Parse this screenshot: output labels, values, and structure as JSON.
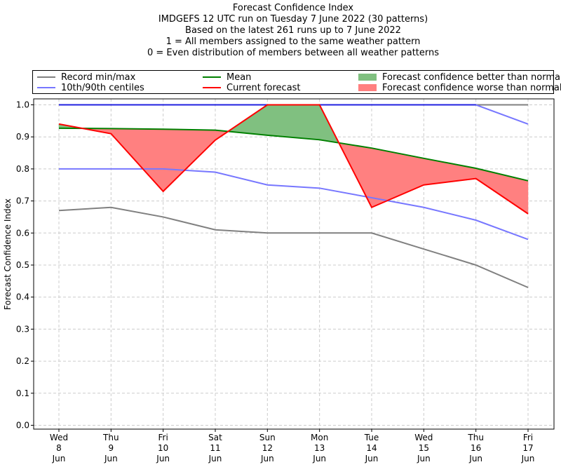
{
  "chart_data": {
    "type": "line",
    "title_lines": [
      "Forecast Confidence Index",
      "IMDGEFS 12 UTC run on Tuesday 7 June 2022 (30 patterns)",
      "Based on the latest 261 runs up to 7 June 2022",
      "1 = All members assigned to the same weather pattern",
      "0 = Even distribution of members between all weather patterns"
    ],
    "ylabel": "Forecast Confidence Index",
    "ylim": [
      0,
      1.0
    ],
    "yticks": [
      "0.0",
      "0.1",
      "0.2",
      "0.3",
      "0.4",
      "0.5",
      "0.6",
      "0.7",
      "0.8",
      "0.9",
      "1.0"
    ],
    "grid": true,
    "categories": [
      [
        "Wed",
        "8",
        "Jun"
      ],
      [
        "Thu",
        "9",
        "Jun"
      ],
      [
        "Fri",
        "10",
        "Jun"
      ],
      [
        "Sat",
        "11",
        "Jun"
      ],
      [
        "Sun",
        "12",
        "Jun"
      ],
      [
        "Mon",
        "13",
        "Jun"
      ],
      [
        "Tue",
        "14",
        "Jun"
      ],
      [
        "Wed",
        "15",
        "Jun"
      ],
      [
        "Thu",
        "16",
        "Jun"
      ],
      [
        "Fri",
        "17",
        "Jun"
      ]
    ],
    "legend": {
      "record": "Record min/max",
      "centiles": "10th/90th centiles",
      "mean": "Mean",
      "current": "Current forecast",
      "better": "Forecast confidence better than normal",
      "worse": "Forecast confidence worse than normal"
    },
    "colors": {
      "record": "#808080",
      "centiles": "#7777ff",
      "mean": "#008000",
      "current": "#ff0000",
      "better": "#80c080",
      "worse": "#ff8080"
    },
    "series": {
      "record_min": [
        0.67,
        0.68,
        0.65,
        0.61,
        0.6,
        0.6,
        0.6,
        0.55,
        0.5,
        0.43
      ],
      "record_max": [
        1.0,
        1.0,
        1.0,
        1.0,
        1.0,
        1.0,
        1.0,
        1.0,
        1.0,
        1.0
      ],
      "p10": [
        0.8,
        0.8,
        0.8,
        0.79,
        0.75,
        0.74,
        0.71,
        0.68,
        0.64,
        0.58
      ],
      "p90": [
        1.0,
        1.0,
        1.0,
        1.0,
        1.0,
        1.0,
        1.0,
        1.0,
        1.0,
        0.94
      ],
      "mean": [
        0.927,
        0.926,
        0.924,
        0.921,
        0.905,
        0.891,
        0.865,
        0.833,
        0.802,
        0.763
      ],
      "current": [
        0.94,
        0.91,
        0.73,
        0.89,
        1.0,
        1.0,
        0.68,
        0.75,
        0.77,
        0.66
      ]
    }
  }
}
